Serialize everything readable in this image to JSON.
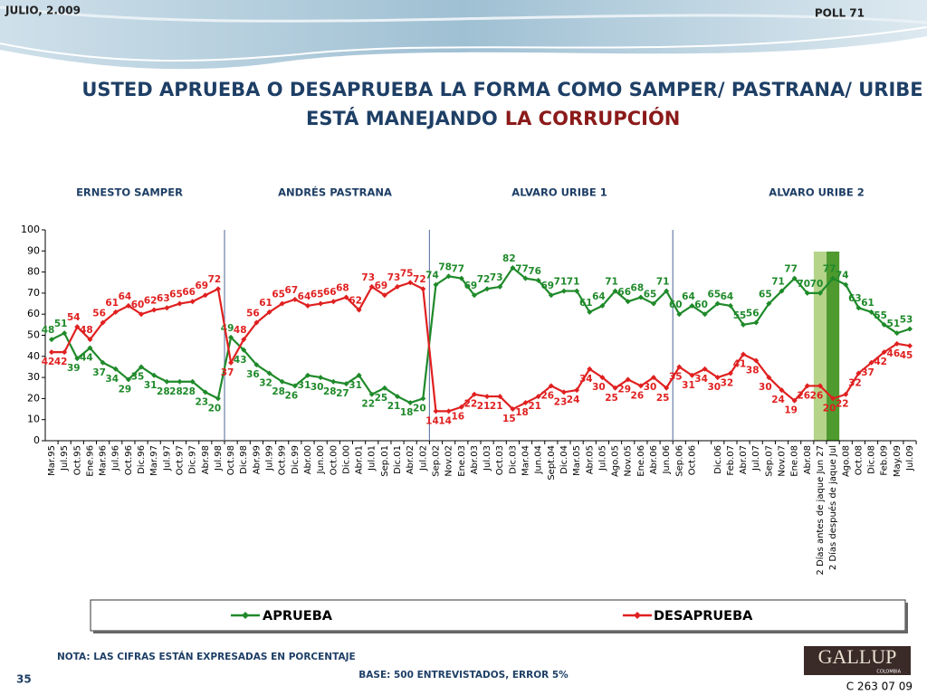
{
  "header": {
    "date": "JULIO, 2.009",
    "poll": "POLL 71"
  },
  "title_line1": "USTED APRUEBA O DESAPRUEBA LA FORMA COMO SAMPER/ PASTRANA/ URIBE",
  "title_line2": "ESTÁ MANEJANDO",
  "title_highlight": "LA CORRUPCIÓN",
  "chart_data": {
    "type": "line",
    "periods": [
      "ERNESTO SAMPER",
      "ANDRÉS  PASTRANA",
      "ALVARO URIBE 1",
      "ALVARO URIBE 2"
    ],
    "categories": [
      "Mar.95",
      "Jul.95",
      "Oct.95",
      "Ene.96",
      "Mar.96",
      "Jul.96",
      "Oct.96",
      "Dic.96",
      "Mar.97",
      "Jul.97",
      "Oct.97",
      "Dic.97",
      "Abr.98",
      "Jul.98",
      "Oct.98",
      "Dic.98",
      "Abr.99",
      "Jul.99",
      "Oct.99",
      "Dic.99",
      "Abr.00",
      "Jun.00",
      "Oct.00",
      "Dic.00",
      "Abr.01",
      "Jul.01",
      "Sep.01",
      "Dic.01",
      "Abr.02",
      "Jul.02",
      "Sep.02",
      "Nov.02",
      "Ene.03",
      "Abr.03",
      "Jul.03",
      "Oct.03",
      "Dic.03",
      "Mar.04",
      "Jun.04",
      "Sept.04",
      "Dic.04",
      "Mar.05",
      "Abr.05",
      "Jul.05",
      "Ago.05",
      "Nov.05",
      "Ene.06",
      "Abr.06",
      "Jun.06",
      "Sep.06",
      "Oct.06",
      null,
      "Dic.06",
      "Feb.07",
      "Abr.07",
      "Jul.07",
      "Sep.07",
      "Nov.07",
      "Ene.08",
      "Abr.08",
      "2 Días antes de jaque Jun 27",
      "2 Días después de jaque Jul",
      "Ago.08",
      "Oct.08",
      "Dic.08",
      "Feb.09",
      "May.09",
      "Jul.09"
    ],
    "series": [
      {
        "name": "APRUEBA",
        "color": "#1f8a2a",
        "values": [
          48,
          51,
          39,
          44,
          37,
          34,
          29,
          35,
          31,
          28,
          28,
          28,
          23,
          20,
          49,
          43,
          36,
          32,
          28,
          26,
          31,
          30,
          28,
          27,
          31,
          22,
          25,
          21,
          18,
          20,
          74,
          78,
          77,
          69,
          72,
          73,
          82,
          77,
          76,
          69,
          71,
          71,
          61,
          64,
          71,
          66,
          68,
          65,
          71,
          60,
          64,
          60,
          65,
          64,
          55,
          56,
          65,
          71,
          77,
          70,
          70,
          77,
          74,
          63,
          61,
          55,
          51,
          53
        ]
      },
      {
        "name": "DESAPRUEBA",
        "color": "#e02020",
        "values": [
          42,
          42,
          54,
          48,
          56,
          61,
          64,
          60,
          62,
          63,
          65,
          66,
          69,
          72,
          37,
          48,
          56,
          61,
          65,
          67,
          64,
          65,
          66,
          68,
          62,
          73,
          69,
          73,
          75,
          72,
          14,
          14,
          16,
          22,
          21,
          21,
          15,
          18,
          21,
          26,
          23,
          24,
          34,
          30,
          25,
          29,
          26,
          30,
          25,
          35,
          31,
          34,
          30,
          32,
          41,
          38,
          30,
          24,
          19,
          26,
          26,
          20,
          22,
          32,
          37,
          42,
          46,
          45
        ]
      }
    ],
    "ylim": [
      0,
      100
    ],
    "yticks": [
      0,
      10,
      20,
      30,
      40,
      50,
      60,
      70,
      80,
      90,
      100
    ],
    "legend": "bottom"
  },
  "footer": {
    "note": "NOTA: LAS CIFRAS ESTÁN EXPRESADAS EN PORCENTAJE",
    "page": "35",
    "base": "BASE: 500 ENTREVISTADOS, ERROR 5%",
    "logo": "GALLUP",
    "logo_sub": "COLOMBIA",
    "code": "C 263 07 09"
  }
}
